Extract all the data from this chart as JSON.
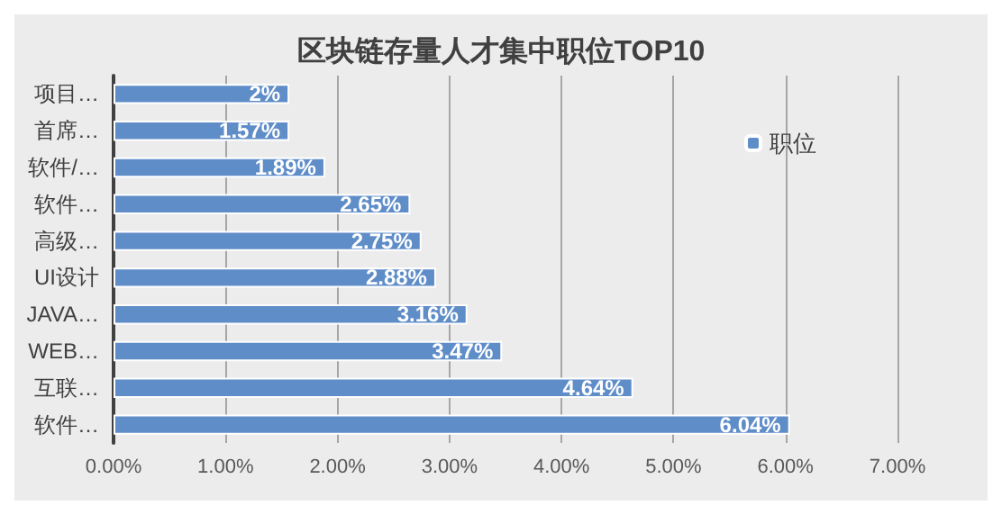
{
  "chart_data": {
    "type": "bar",
    "orientation": "horizontal",
    "title": "区块链存量人才集中职位TOP10",
    "categories": [
      "项目…",
      "首席…",
      "软件/…",
      "软件…",
      "高级…",
      "UI设计",
      "JAVA…",
      "WEB…",
      "互联…",
      "软件…"
    ],
    "series": [
      {
        "name": "职位",
        "color": "#5f8dc8",
        "values": [
          1.57,
          1.57,
          1.89,
          2.65,
          2.75,
          2.88,
          3.16,
          3.47,
          4.64,
          6.04
        ],
        "value_labels": [
          "2%",
          "1.57%",
          "1.89%",
          "2.65%",
          "2.75%",
          "2.88%",
          "3.16%",
          "3.47%",
          "4.64%",
          "6.04%"
        ]
      }
    ],
    "xlim": [
      0,
      7
    ],
    "xticks": [
      {
        "value": 0,
        "label": "0.00%"
      },
      {
        "value": 1,
        "label": "1.00%"
      },
      {
        "value": 2,
        "label": "2.00%"
      },
      {
        "value": 3,
        "label": "3.00%"
      },
      {
        "value": 4,
        "label": "4.00%"
      },
      {
        "value": 5,
        "label": "5.00%"
      },
      {
        "value": 6,
        "label": "6.00%"
      },
      {
        "value": 7,
        "label": "7.00%"
      }
    ],
    "grid": "x",
    "legend": "right"
  }
}
